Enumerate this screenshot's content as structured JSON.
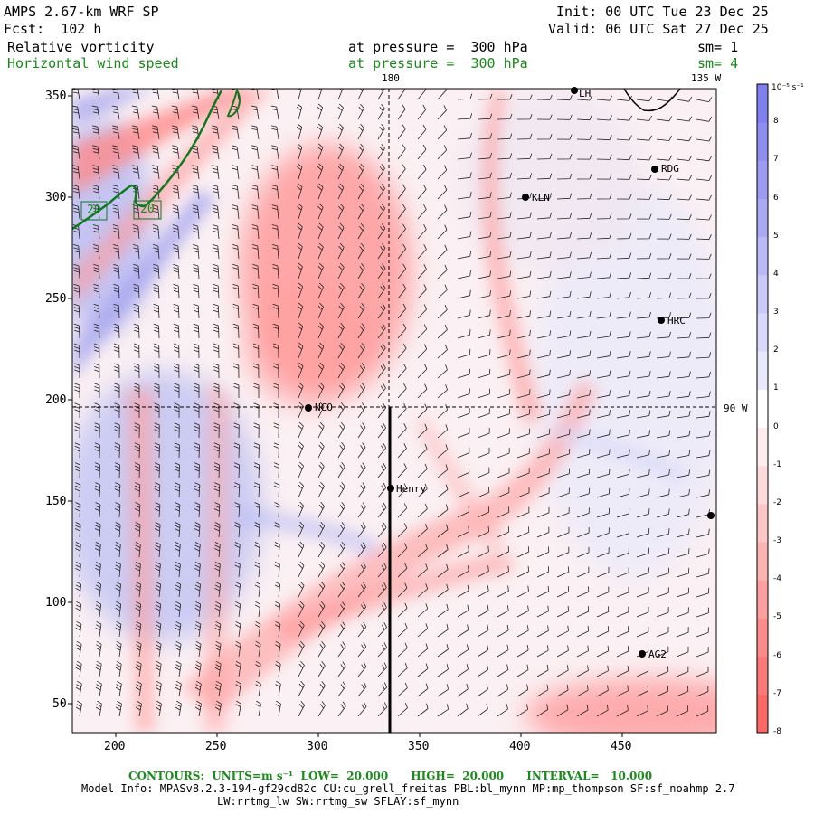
{
  "header": {
    "model": "AMPS 2.67-km WRF SP",
    "fcst": "Fcst:  102 h",
    "init": "Init: 00 UTC Tue 23 Dec 25",
    "valid": "Valid: 06 UTC Sat 27 Dec 25",
    "field1": "Relative vorticity",
    "field1_level": "at pressure =  300 hPa",
    "field1_sm": "sm= 1",
    "field2": "Horizontal wind speed",
    "field2_level": "at pressure =  300 hPa",
    "field2_sm": "sm= 4"
  },
  "map_labels": {
    "lon_180": "180",
    "lon_135w": "135 W",
    "lon_90w": "90 W",
    "contour_a": "20",
    "contour_b": "20"
  },
  "axes": {
    "x_ticks": [
      "200",
      "250",
      "300",
      "350",
      "400",
      "450"
    ],
    "y_ticks": [
      "350",
      "300",
      "250",
      "200",
      "150",
      "100",
      "50"
    ]
  },
  "stations": [
    {
      "name": "NCO"
    },
    {
      "name": "Henry"
    },
    {
      "name": "KLN"
    },
    {
      "name": "RDG"
    },
    {
      "name": "HRC"
    },
    {
      "name": "AG2"
    },
    {
      "name": "LH"
    }
  ],
  "colorbar": {
    "unit": "10⁻⁵ s⁻¹",
    "labels": [
      "8",
      "7",
      "6",
      "5",
      "4",
      "3",
      "2",
      "1",
      "0",
      "-1",
      "-2",
      "-3",
      "-4",
      "-5",
      "-6",
      "-7",
      "-8"
    ],
    "colors": [
      "#7f7ff0",
      "#8d8df2",
      "#9b9bf4",
      "#a9a9f6",
      "#b9b9f8",
      "#c9c9fa",
      "#d9d9fc",
      "#e9e9fe",
      "#ffffff",
      "#ffecec",
      "#ffdada",
      "#ffc6c6",
      "#ffb2b2",
      "#ff9e9e",
      "#ff8a8a",
      "#ff7878",
      "#ff6666"
    ]
  },
  "footer": {
    "contours_label": "CONTOURS:  UNITS=m s⁻¹  LOW=  20.000      HIGH=  20.000      INTERVAL=   10.000",
    "model_info": "Model Info: MPASv8.2.3-194-gf29cd82c CU:cu_grell_freitas PBL:bl_mynn MP:mp_thompson SF:sf_noahmp 2.7",
    "model_info2": "LW:rrtmg_lw SW:rrtmg_sw SFLAY:sf_mynn"
  }
}
